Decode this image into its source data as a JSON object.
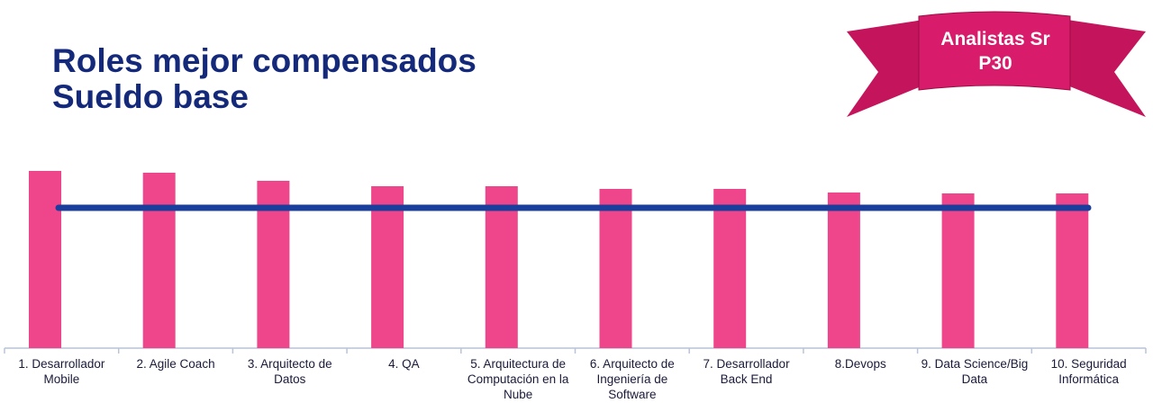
{
  "chart_data": {
    "type": "bar",
    "title": [
      "Roles mejor compensados",
      "Sueldo base"
    ],
    "badge": [
      "Analistas Sr",
      "P30"
    ],
    "categories": [
      "1. Desarrollador Mobile",
      "2. Agile Coach",
      "3. Arquitecto de Datos",
      "4. QA",
      "5. Arquitectura de Computación en la Nube",
      "6. Arquitecto de Ingeniería de Software",
      "7. Desarrollador Back End",
      "8.Devops",
      "9. Data Science/Big Data",
      "10. Seguridad Informática"
    ],
    "values": [
      197,
      195,
      186,
      180,
      180,
      177,
      177,
      173,
      172,
      172
    ],
    "color": "#ef468b",
    "reference_line": 156,
    "reference_color": "#1a3e9c",
    "ylim": [
      0,
      200
    ]
  }
}
